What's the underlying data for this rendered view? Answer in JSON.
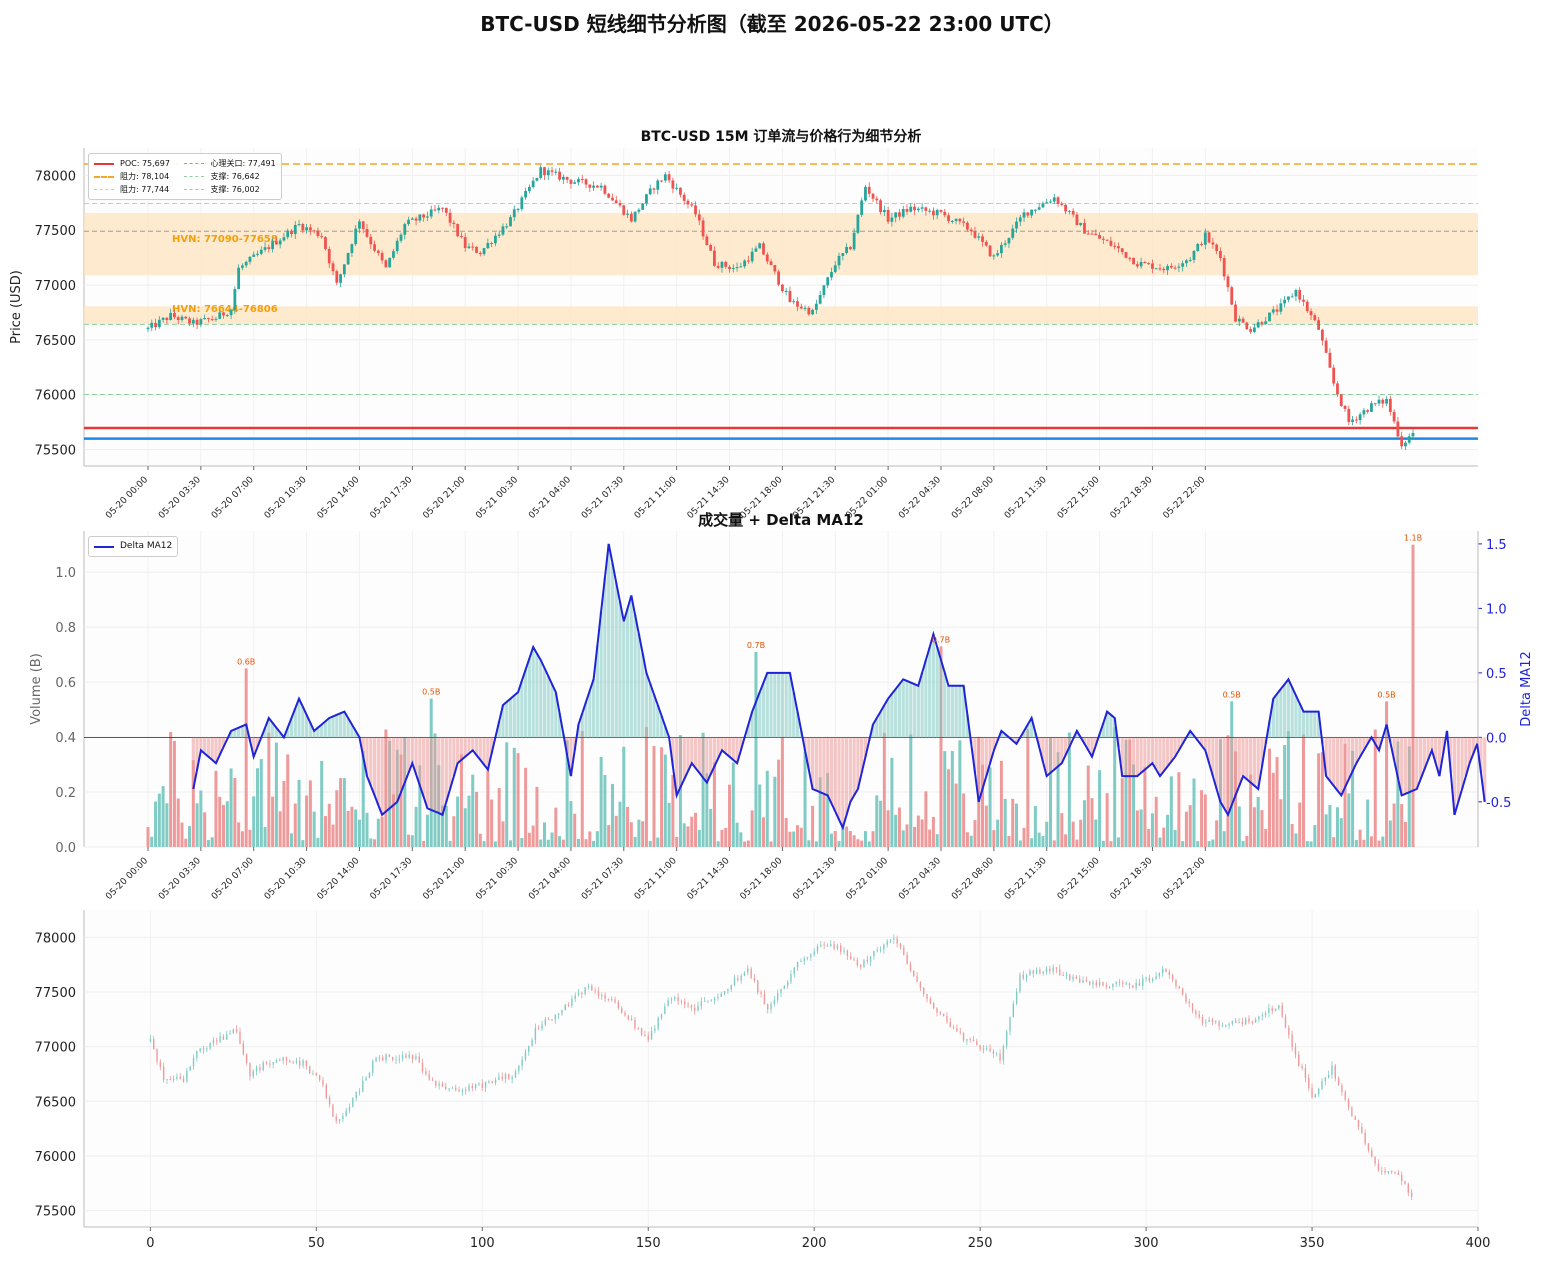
{
  "suptitle": "BTC-USD 短线细节分析图（截至 2026-05-22 23:00 UTC）",
  "colors": {
    "up": "#26a69a",
    "down": "#ef5350",
    "poc": "#e53935",
    "resistance": "#f5a623",
    "support": "#8fd19e",
    "psych": "#9e9e9e",
    "current": "#1e88e5",
    "delta": "#1f24d6",
    "hvn_band": "#fde3bd",
    "hvn_text": "#f59e0b",
    "vol_up": "#80cbc4",
    "vol_down": "#ef9a9a",
    "annot": "#e65100"
  },
  "chart_data": [
    {
      "type": "candlestick",
      "title": "BTC-USD 15M 订单流与价格行为细节分析",
      "ylabel": "Price (USD)",
      "ylim": [
        75350,
        78250
      ],
      "yticks": [
        75500,
        76000,
        76500,
        77000,
        77500,
        78000
      ],
      "xticklabels": [
        "05-20 00:00",
        "05-20 03:30",
        "05-20 07:00",
        "05-20 10:30",
        "05-20 14:00",
        "05-20 17:30",
        "05-20 21:00",
        "05-21 00:30",
        "05-21 04:00",
        "05-21 07:30",
        "05-21 11:00",
        "05-21 14:30",
        "05-21 18:00",
        "05-21 21:30",
        "05-22 01:00",
        "05-22 04:30",
        "05-22 08:00",
        "05-22 11:30",
        "05-22 15:00",
        "05-22 18:30",
        "05-22 22:00"
      ],
      "levels": [
        {
          "label": "POC: 75,697",
          "value": 75697,
          "kind": "poc"
        },
        {
          "label": "阻力: 78,104",
          "value": 78104,
          "kind": "resistance_major"
        },
        {
          "label": "阻力: 77,744",
          "value": 77744,
          "kind": "resistance"
        },
        {
          "label": "心理关口: 77,491",
          "value": 77491,
          "kind": "psych"
        },
        {
          "label": "支撑: 76,642",
          "value": 76642,
          "kind": "support"
        },
        {
          "label": "支撑: 76,002",
          "value": 76002,
          "kind": "support"
        }
      ],
      "current_price": 75600,
      "hvn_zones": [
        {
          "label": "HVN: 77090-77658",
          "low": 77090,
          "high": 77658
        },
        {
          "label": "HVN: 76644-76806",
          "low": 76644,
          "high": 76806
        }
      ],
      "grid": true,
      "legend": "top-left",
      "price_path": {
        "note_free": true,
        "start": 76550,
        "knots": [
          [
            0,
            76600
          ],
          [
            6,
            76720
          ],
          [
            12,
            76650
          ],
          [
            18,
            76700
          ],
          [
            22,
            76780
          ],
          [
            24,
            77150
          ],
          [
            30,
            77300
          ],
          [
            40,
            77550
          ],
          [
            46,
            77450
          ],
          [
            50,
            77000
          ],
          [
            56,
            77600
          ],
          [
            58,
            77450
          ],
          [
            63,
            77150
          ],
          [
            68,
            77550
          ],
          [
            78,
            77700
          ],
          [
            84,
            77350
          ],
          [
            88,
            77300
          ],
          [
            96,
            77600
          ],
          [
            104,
            78050
          ],
          [
            112,
            77950
          ],
          [
            120,
            77900
          ],
          [
            128,
            77600
          ],
          [
            134,
            77900
          ],
          [
            137,
            78000
          ],
          [
            145,
            77650
          ],
          [
            150,
            77200
          ],
          [
            156,
            77150
          ],
          [
            162,
            77350
          ],
          [
            170,
            76850
          ],
          [
            176,
            76750
          ],
          [
            182,
            77200
          ],
          [
            186,
            77350
          ],
          [
            190,
            77900
          ],
          [
            196,
            77600
          ],
          [
            202,
            77700
          ],
          [
            210,
            77650
          ],
          [
            218,
            77500
          ],
          [
            224,
            77250
          ],
          [
            232,
            77650
          ],
          [
            240,
            77800
          ],
          [
            248,
            77500
          ],
          [
            256,
            77350
          ],
          [
            262,
            77200
          ],
          [
            270,
            77150
          ],
          [
            276,
            77250
          ],
          [
            280,
            77450
          ],
          [
            284,
            77250
          ],
          [
            288,
            76700
          ],
          [
            292,
            76600
          ],
          [
            300,
            76800
          ],
          [
            304,
            76950
          ],
          [
            310,
            76600
          ],
          [
            314,
            76100
          ],
          [
            318,
            75750
          ],
          [
            324,
            75900
          ],
          [
            328,
            75950
          ],
          [
            332,
            75550
          ],
          [
            335,
            75650
          ]
        ],
        "count": 336
      }
    },
    {
      "type": "bar",
      "title": "成交量 + Delta MA12",
      "ylabel": "Volume (B)",
      "ylabel_right": "Delta MA12",
      "ylim": [
        0,
        1.15
      ],
      "yticks": [
        0.0,
        0.2,
        0.4,
        0.6,
        0.8,
        1.0
      ],
      "y2lim": [
        -0.85,
        1.6
      ],
      "y2ticks": [
        -0.5,
        0.0,
        0.5,
        1.0,
        1.5
      ],
      "legend": [
        "Delta MA12"
      ],
      "xticklabels": [
        "05-20 00:00",
        "05-20 03:30",
        "05-20 07:00",
        "05-20 10:30",
        "05-20 14:00",
        "05-20 17:30",
        "05-20 21:00",
        "05-21 00:30",
        "05-21 04:00",
        "05-21 07:30",
        "05-21 11:00",
        "05-21 14:30",
        "05-21 18:00",
        "05-21 21:30",
        "05-22 01:00",
        "05-22 04:30",
        "05-22 08:00",
        "05-22 11:30",
        "05-22 15:00",
        "05-22 18:30",
        "05-22 22:00"
      ],
      "annotations": [
        {
          "label": "0.6B",
          "index": 26,
          "value": 0.65
        },
        {
          "label": "0.5B",
          "index": 75,
          "value": 0.54
        },
        {
          "label": "0.7B",
          "index": 161,
          "value": 0.71
        },
        {
          "label": "0.7B",
          "index": 210,
          "value": 0.73
        },
        {
          "label": "0.5B",
          "index": 287,
          "value": 0.53
        },
        {
          "label": "0.5B",
          "index": 328,
          "value": 0.53
        },
        {
          "label": "1.1B",
          "index": 335,
          "value": 1.1
        }
      ],
      "delta_knots": [
        [
          12,
          -0.4
        ],
        [
          14,
          -0.1
        ],
        [
          18,
          -0.2
        ],
        [
          22,
          0.05
        ],
        [
          26,
          0.1
        ],
        [
          28,
          -0.15
        ],
        [
          32,
          0.15
        ],
        [
          36,
          0.0
        ],
        [
          40,
          0.3
        ],
        [
          44,
          0.05
        ],
        [
          48,
          0.15
        ],
        [
          52,
          0.2
        ],
        [
          56,
          0.0
        ],
        [
          58,
          -0.3
        ],
        [
          62,
          -0.6
        ],
        [
          66,
          -0.5
        ],
        [
          70,
          -0.2
        ],
        [
          74,
          -0.55
        ],
        [
          78,
          -0.6
        ],
        [
          82,
          -0.2
        ],
        [
          86,
          -0.1
        ],
        [
          90,
          -0.25
        ],
        [
          94,
          0.25
        ],
        [
          98,
          0.35
        ],
        [
          102,
          0.7
        ],
        [
          104,
          0.6
        ],
        [
          108,
          0.35
        ],
        [
          112,
          -0.3
        ],
        [
          114,
          0.1
        ],
        [
          118,
          0.45
        ],
        [
          122,
          1.5
        ],
        [
          126,
          0.9
        ],
        [
          128,
          1.1
        ],
        [
          132,
          0.5
        ],
        [
          138,
          0.0
        ],
        [
          140,
          -0.45
        ],
        [
          144,
          -0.2
        ],
        [
          148,
          -0.35
        ],
        [
          152,
          -0.1
        ],
        [
          156,
          -0.2
        ],
        [
          160,
          0.2
        ],
        [
          164,
          0.5
        ],
        [
          170,
          0.5
        ],
        [
          176,
          -0.4
        ],
        [
          180,
          -0.45
        ],
        [
          184,
          -0.7
        ],
        [
          186,
          -0.5
        ],
        [
          188,
          -0.4
        ],
        [
          192,
          0.1
        ],
        [
          196,
          0.3
        ],
        [
          200,
          0.45
        ],
        [
          204,
          0.4
        ],
        [
          208,
          0.8
        ],
        [
          212,
          0.4
        ],
        [
          216,
          0.4
        ],
        [
          220,
          -0.5
        ],
        [
          224,
          -0.1
        ],
        [
          226,
          0.05
        ],
        [
          230,
          -0.05
        ],
        [
          234,
          0.15
        ],
        [
          238,
          -0.3
        ],
        [
          242,
          -0.2
        ],
        [
          246,
          0.05
        ],
        [
          250,
          -0.15
        ],
        [
          254,
          0.2
        ],
        [
          256,
          0.15
        ],
        [
          258,
          -0.3
        ],
        [
          262,
          -0.3
        ],
        [
          266,
          -0.2
        ],
        [
          268,
          -0.3
        ],
        [
          272,
          -0.15
        ],
        [
          276,
          0.05
        ],
        [
          280,
          -0.1
        ],
        [
          284,
          -0.5
        ],
        [
          286,
          -0.6
        ],
        [
          290,
          -0.3
        ],
        [
          294,
          -0.4
        ],
        [
          298,
          0.3
        ],
        [
          302,
          0.45
        ],
        [
          306,
          0.2
        ],
        [
          310,
          0.2
        ],
        [
          312,
          -0.3
        ],
        [
          316,
          -0.45
        ],
        [
          320,
          -0.2
        ],
        [
          324,
          0.0
        ],
        [
          326,
          -0.1
        ],
        [
          328,
          0.1
        ],
        [
          332,
          -0.45
        ],
        [
          336,
          -0.4
        ],
        [
          340,
          -0.1
        ],
        [
          342,
          -0.3
        ],
        [
          344,
          0.05
        ],
        [
          346,
          -0.6
        ],
        [
          350,
          -0.2
        ],
        [
          352,
          -0.05
        ],
        [
          354,
          -0.5
        ]
      ]
    },
    {
      "type": "candlestick",
      "title": "",
      "xlim": [
        -20,
        400
      ],
      "xticks": [
        0,
        50,
        100,
        150,
        200,
        250,
        300,
        350,
        400
      ],
      "ylim": [
        75350,
        78250
      ],
      "yticks": [
        75500,
        76000,
        76500,
        77000,
        77500,
        78000
      ],
      "price_knots": [
        [
          0,
          77050
        ],
        [
          4,
          76700
        ],
        [
          10,
          76700
        ],
        [
          14,
          76950
        ],
        [
          26,
          77150
        ],
        [
          30,
          76750
        ],
        [
          38,
          76900
        ],
        [
          46,
          76850
        ],
        [
          52,
          76650
        ],
        [
          56,
          76300
        ],
        [
          60,
          76450
        ],
        [
          68,
          76900
        ],
        [
          80,
          76900
        ],
        [
          84,
          76700
        ],
        [
          90,
          76600
        ],
        [
          100,
          76650
        ],
        [
          110,
          76750
        ],
        [
          116,
          77150
        ],
        [
          124,
          77350
        ],
        [
          132,
          77550
        ],
        [
          140,
          77400
        ],
        [
          150,
          77050
        ],
        [
          156,
          77450
        ],
        [
          164,
          77350
        ],
        [
          172,
          77500
        ],
        [
          180,
          77700
        ],
        [
          186,
          77350
        ],
        [
          196,
          77800
        ],
        [
          204,
          77950
        ],
        [
          210,
          77850
        ],
        [
          214,
          77750
        ],
        [
          224,
          78000
        ],
        [
          230,
          77650
        ],
        [
          236,
          77350
        ],
        [
          244,
          77100
        ],
        [
          250,
          77000
        ],
        [
          256,
          76900
        ],
        [
          262,
          77650
        ],
        [
          272,
          77700
        ],
        [
          280,
          77600
        ],
        [
          296,
          77550
        ],
        [
          306,
          77700
        ],
        [
          316,
          77250
        ],
        [
          324,
          77200
        ],
        [
          334,
          77250
        ],
        [
          340,
          77400
        ],
        [
          344,
          77000
        ],
        [
          350,
          76550
        ],
        [
          356,
          76800
        ],
        [
          364,
          76250
        ],
        [
          370,
          75850
        ],
        [
          376,
          75850
        ],
        [
          380,
          75600
        ]
      ],
      "count": 381
    }
  ]
}
